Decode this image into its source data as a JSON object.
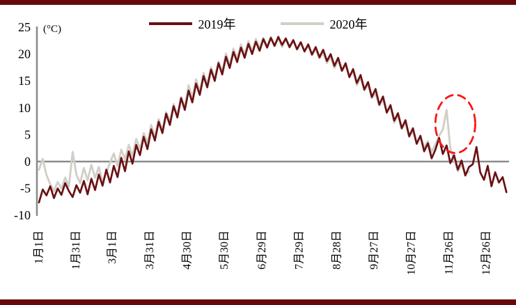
{
  "page": {
    "top_bar_color": "#670909",
    "bottom_bar_color": "#670909",
    "background": "#ffffff"
  },
  "chart_data": {
    "type": "line",
    "unit_label": "(°C)",
    "ylim": [
      -10,
      25
    ],
    "y_ticks": [
      25,
      20,
      15,
      10,
      5,
      0,
      -5,
      -10
    ],
    "x_tick_labels": [
      "1月1日",
      "1月31日",
      "3月1日",
      "3月31日",
      "4月30日",
      "5月30日",
      "6月29日",
      "7月29日",
      "8月28日",
      "9月27日",
      "10月27日",
      "11月26日",
      "12月26日"
    ],
    "x_tick_days": [
      1,
      31,
      60,
      90,
      120,
      150,
      180,
      210,
      240,
      270,
      300,
      330,
      360
    ],
    "axis_color": "#8c8c8c",
    "grid": "off",
    "legend_position": "top-center",
    "legend": [
      {
        "key": "2019",
        "label": "2019年",
        "color": "#6a1113"
      },
      {
        "key": "2020",
        "label": "2020年",
        "color": "#d1cfc7"
      }
    ],
    "series": [
      {
        "key": "2019",
        "name": "2019年",
        "color": "#6a1113",
        "width": 2.7,
        "start_day": 1,
        "step_days": 3,
        "values": [
          -7.6,
          -5.2,
          -6.3,
          -4.6,
          -6.8,
          -5.0,
          -6.2,
          -4.0,
          -5.5,
          -6.6,
          -4.4,
          -5.8,
          -3.6,
          -6.1,
          -3.2,
          -5.3,
          -2.4,
          -4.5,
          -1.5,
          -3.9,
          -0.8,
          -2.9,
          0.7,
          -1.8,
          1.9,
          -0.4,
          3.1,
          1.2,
          4.6,
          2.3,
          6.0,
          3.9,
          7.4,
          5.3,
          8.9,
          6.8,
          10.3,
          8.2,
          11.8,
          9.6,
          13.2,
          11.0,
          14.5,
          12.4,
          15.9,
          13.8,
          17.1,
          15.0,
          18.3,
          16.2,
          19.5,
          17.4,
          20.4,
          18.5,
          21.2,
          19.3,
          21.9,
          20.0,
          22.3,
          20.6,
          22.8,
          21.2,
          23.0,
          21.5,
          23.2,
          21.7,
          22.9,
          21.3,
          22.6,
          20.9,
          22.2,
          20.5,
          21.8,
          19.9,
          21.3,
          19.4,
          20.8,
          18.7,
          20.0,
          17.8,
          19.3,
          16.9,
          18.3,
          15.7,
          17.2,
          14.6,
          16.1,
          13.4,
          14.8,
          12.0,
          13.5,
          10.6,
          12.1,
          9.1,
          10.5,
          7.6,
          9.0,
          6.2,
          7.7,
          4.7,
          6.2,
          3.3,
          4.8,
          1.9,
          3.4,
          0.6,
          2.2,
          4.4,
          1.4,
          3.0,
          -0.3,
          1.2,
          -1.5,
          0.2,
          -2.6,
          -1.0,
          -0.5,
          2.7,
          -2.0,
          -3.4,
          -0.8,
          -4.6,
          -2.0,
          -3.9,
          -2.9,
          -5.7
        ]
      },
      {
        "key": "2020",
        "name": "2020年",
        "color": "#d1cfc7",
        "width": 2.9,
        "start_day": 1,
        "step_days": 3,
        "values": [
          -1.5,
          0.5,
          -2.5,
          -4.2,
          -5.5,
          -3.8,
          -5.0,
          -3.0,
          -4.6,
          1.8,
          -2.4,
          -4.0,
          -1.2,
          -3.5,
          -0.6,
          -3.0,
          -1.0,
          -3.8,
          -2.2,
          -0.2,
          1.5,
          -0.8,
          2.2,
          0.4,
          3.1,
          1.0,
          4.2,
          2.4,
          5.3,
          3.5,
          6.8,
          4.6,
          7.9,
          5.8,
          9.2,
          7.5,
          10.7,
          8.6,
          12.0,
          10.1,
          14.2,
          11.8,
          15.3,
          13.1,
          16.5,
          14.4,
          17.5,
          15.5,
          18.6,
          16.7,
          20.1,
          17.9,
          21.0,
          19.2,
          21.8,
          19.9,
          22.4,
          20.6,
          22.8,
          21.0,
          23.0,
          21.4,
          23.2,
          21.6,
          22.9,
          21.3,
          22.7,
          21.2,
          22.4,
          20.8,
          22.2,
          20.4,
          21.6,
          19.8,
          20.9,
          19.2,
          20.2,
          18.3,
          19.4,
          17.4,
          18.8,
          16.8,
          17.9,
          15.8,
          16.8,
          14.2,
          15.6,
          13.2,
          14.4,
          11.8,
          12.6,
          10.4,
          11.5,
          9.2,
          10.2,
          7.2,
          8.6,
          6.1,
          7.2,
          4.6,
          5.6,
          3.4,
          4.7,
          2.6,
          3.8,
          1.8,
          3.2,
          4.8,
          6.0,
          9.6,
          2.4,
          0.3,
          -1.8,
          -0.6,
          -2.3,
          -1.9
        ]
      }
    ],
    "annotation": {
      "type": "dashed-ellipse",
      "color": "#fb1414",
      "cx_day": 335,
      "cy_value": 7.0,
      "rx_days": 16,
      "ry_value": 5.4
    }
  }
}
